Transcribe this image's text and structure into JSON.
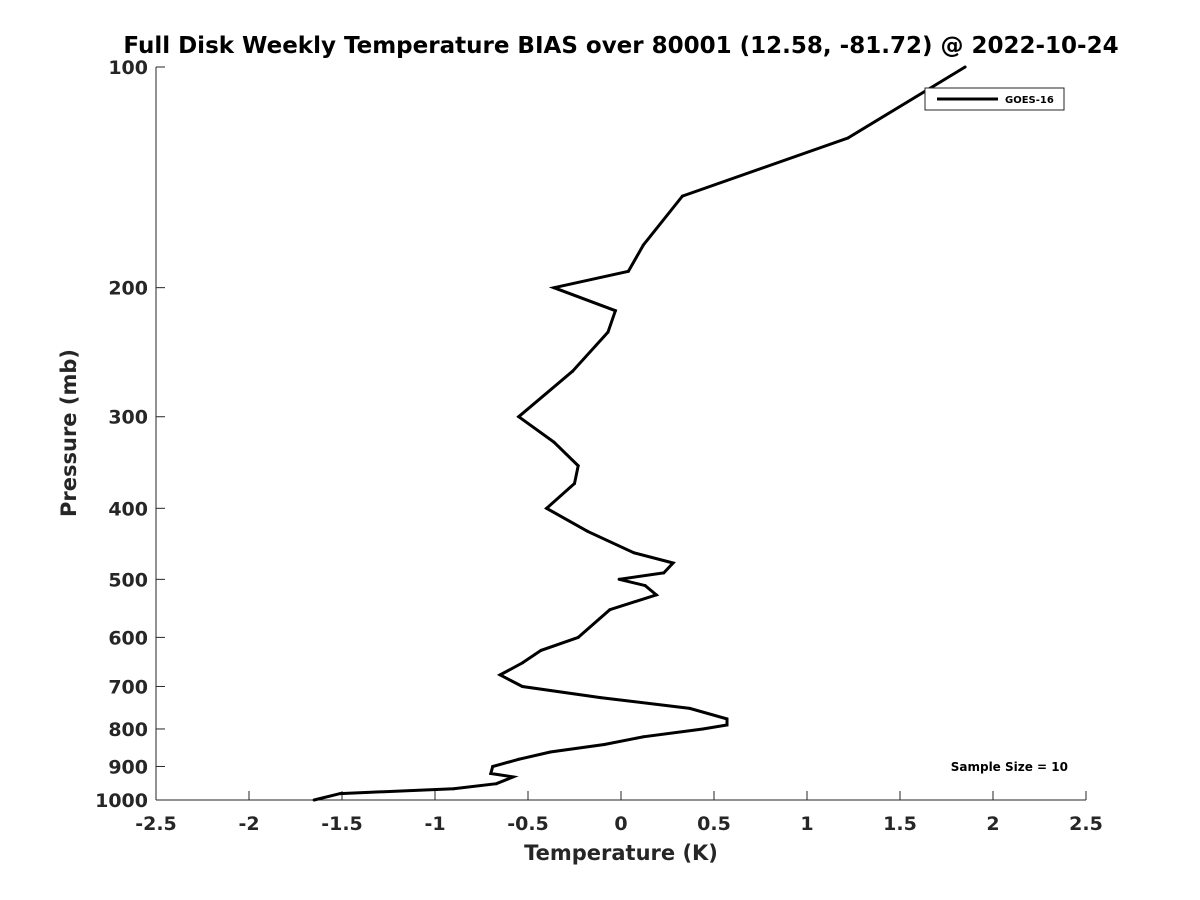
{
  "chart_data": {
    "type": "line",
    "title": "Full Disk Weekly Temperature BIAS over 80001 (12.58, -81.72) @ 2022-10-24",
    "xlabel": "Temperature (K)",
    "ylabel": "Pressure (mb)",
    "xlim": [
      -2.5,
      2.5
    ],
    "ylim": [
      100,
      1000
    ],
    "yscale": "log",
    "y_reversed": true,
    "grid": false,
    "legend_position": "top-right",
    "x_ticks": [
      -2.5,
      -2,
      -1.5,
      -1,
      -0.5,
      0,
      0.5,
      1,
      1.5,
      2,
      2.5
    ],
    "x_tick_labels": [
      "-2.5",
      "-2",
      "-1.5",
      "-1",
      "-0.5",
      "0",
      "0.5",
      "1",
      "1.5",
      "2",
      "2.5"
    ],
    "y_ticks": [
      100,
      200,
      300,
      400,
      500,
      600,
      700,
      800,
      900,
      1000
    ],
    "y_tick_labels": [
      "100",
      "200",
      "300",
      "400",
      "500",
      "600",
      "700",
      "800",
      "900",
      "1000"
    ],
    "series": [
      {
        "name": "GOES-16",
        "color": "#000000",
        "points": [
          [
            1.85,
            100
          ],
          [
            1.22,
            125
          ],
          [
            0.33,
            150
          ],
          [
            0.12,
            175
          ],
          [
            0.04,
            190
          ],
          [
            -0.36,
            200
          ],
          [
            -0.03,
            215
          ],
          [
            -0.07,
            230
          ],
          [
            -0.26,
            260
          ],
          [
            -0.55,
            300
          ],
          [
            -0.36,
            325
          ],
          [
            -0.23,
            350
          ],
          [
            -0.25,
            370
          ],
          [
            -0.4,
            400
          ],
          [
            -0.18,
            430
          ],
          [
            0.07,
            460
          ],
          [
            0.28,
            475
          ],
          [
            0.23,
            490
          ],
          [
            -0.01,
            500
          ],
          [
            0.13,
            510
          ],
          [
            0.19,
            525
          ],
          [
            -0.06,
            550
          ],
          [
            -0.23,
            600
          ],
          [
            -0.43,
            625
          ],
          [
            -0.53,
            650
          ],
          [
            -0.65,
            675
          ],
          [
            -0.53,
            700
          ],
          [
            -0.11,
            725
          ],
          [
            0.37,
            750
          ],
          [
            0.57,
            775
          ],
          [
            0.57,
            790
          ],
          [
            0.44,
            800
          ],
          [
            0.12,
            820
          ],
          [
            -0.09,
            840
          ],
          [
            -0.38,
            860
          ],
          [
            -0.55,
            880
          ],
          [
            -0.69,
            900
          ],
          [
            -0.7,
            920
          ],
          [
            -0.58,
            930
          ],
          [
            -0.67,
            950
          ],
          [
            -0.9,
            965
          ],
          [
            -1.51,
            980
          ],
          [
            -1.65,
            1000
          ]
        ]
      }
    ],
    "annotations": [
      {
        "text": "Sample Size = 10",
        "position": "bottom-right"
      }
    ]
  }
}
